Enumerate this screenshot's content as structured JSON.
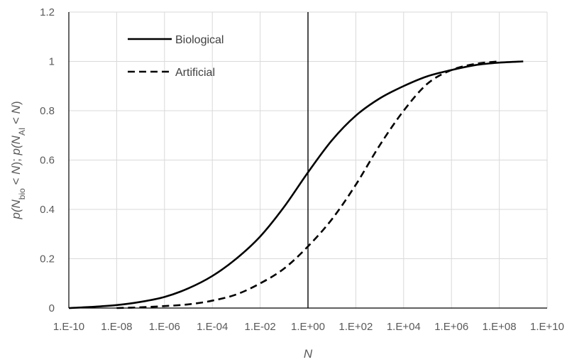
{
  "chart_data": {
    "type": "line",
    "title": "",
    "xlabel": "N",
    "ylabel": {
      "parts": [
        {
          "text": "p(N",
          "style": "italic"
        },
        {
          "text": "bio",
          "style": "sub"
        },
        {
          "text": " < ",
          "style": "normal"
        },
        {
          "text": "N",
          "style": "italic"
        },
        {
          "text": "); ",
          "style": "normal"
        },
        {
          "text": "p(N",
          "style": "italic"
        },
        {
          "text": "AI",
          "style": "sub"
        },
        {
          "text": " < ",
          "style": "normal"
        },
        {
          "text": "N",
          "style": "italic"
        },
        {
          "text": ")",
          "style": "normal"
        }
      ]
    },
    "x_scale": "log10",
    "xlim": [
      1e-10,
      10000000000.0
    ],
    "ylim": [
      0,
      1.2
    ],
    "x_ticks": [
      1e-10,
      1e-08,
      1e-06,
      0.0001,
      0.01,
      1,
      100.0,
      10000.0,
      1000000.0,
      100000000.0,
      10000000000.0
    ],
    "x_tick_labels": [
      "1.E-10",
      "1.E-08",
      "1.E-06",
      "1.E-04",
      "1.E-02",
      "1.E+00",
      "1.E+02",
      "1.E+04",
      "1.E+06",
      "1.E+08",
      "1.E+10"
    ],
    "y_ticks": [
      0,
      0.2,
      0.4,
      0.6,
      0.8,
      1,
      1.2
    ],
    "y_tick_labels": [
      "0",
      "0.2",
      "0.4",
      "0.6",
      "0.8",
      "1",
      "1.2"
    ],
    "grid": true,
    "vertical_line_x": 1,
    "legend": {
      "position": "top-left"
    },
    "series": [
      {
        "name": "Biological",
        "line_style": "solid",
        "color": "#000000",
        "x": [
          1e-10,
          1e-09,
          1e-08,
          1e-07,
          1e-06,
          1e-05,
          0.0001,
          0.001,
          0.01,
          0.1,
          1,
          10.0,
          100.0,
          1000.0,
          10000.0,
          100000.0,
          1000000.0,
          10000000.0,
          100000000.0,
          1000000000.0
        ],
        "y": [
          0.0,
          0.005,
          0.012,
          0.025,
          0.045,
          0.08,
          0.13,
          0.2,
          0.29,
          0.41,
          0.55,
          0.68,
          0.78,
          0.85,
          0.9,
          0.94,
          0.965,
          0.985,
          0.995,
          1.0
        ]
      },
      {
        "name": "Artificial",
        "line_style": "dashed",
        "color": "#000000",
        "x": [
          1e-08,
          1e-07,
          1e-06,
          1e-05,
          0.0001,
          0.001,
          0.01,
          0.1,
          1,
          10.0,
          100.0,
          1000.0,
          10000.0,
          100000.0,
          1000000.0,
          10000000.0,
          100000000.0
        ],
        "y": [
          0.0,
          0.003,
          0.008,
          0.015,
          0.03,
          0.055,
          0.1,
          0.16,
          0.25,
          0.36,
          0.5,
          0.66,
          0.8,
          0.91,
          0.965,
          0.99,
          1.0
        ]
      }
    ]
  }
}
